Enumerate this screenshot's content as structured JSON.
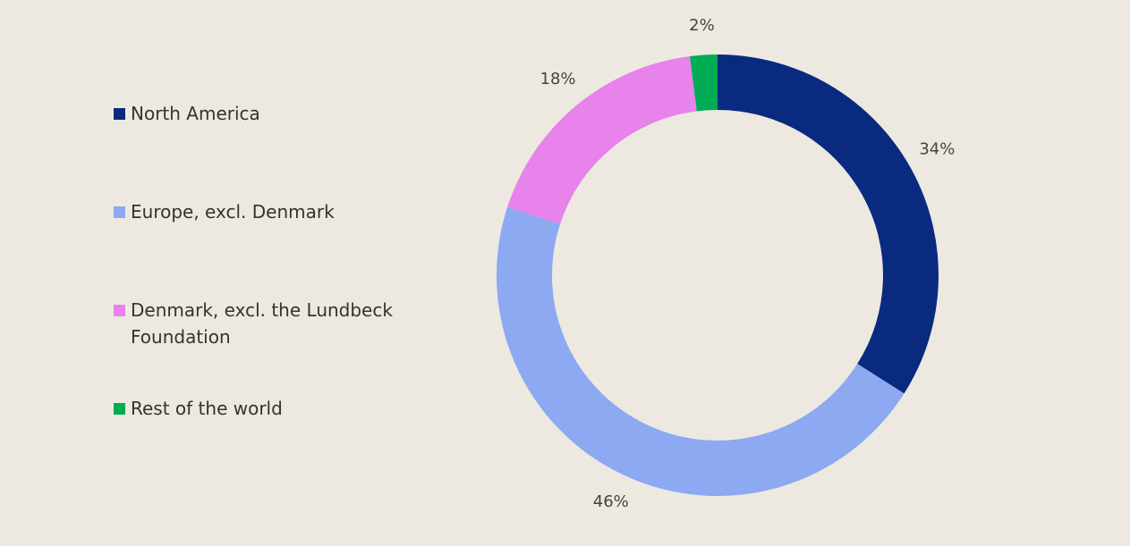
{
  "chart_data": {
    "type": "donut",
    "title": "",
    "categories": [
      "North America",
      "Europe, excl. Denmark",
      "Denmark, excl. the Lundbeck Foundation",
      "Rest of the world"
    ],
    "values": [
      34,
      46,
      18,
      2
    ],
    "value_labels": [
      "34%",
      "46%",
      "18%",
      "2%"
    ],
    "colors": [
      "#0a2a80",
      "#8ca9f2",
      "#e783ea",
      "#00ad54"
    ],
    "start": "12 o'clock",
    "direction": "clockwise",
    "legend_position": "left"
  },
  "legend": [
    {
      "label": "North America",
      "color": "#0a2a80"
    },
    {
      "label": "Europe, excl. Denmark",
      "color": "#8ca9f2"
    },
    {
      "label": "Denmark, excl. the Lundbeck Foundation",
      "color": "#e783ea"
    },
    {
      "label": "Rest of the world",
      "color": "#00ad54"
    }
  ],
  "colors": {
    "background": "#ede9e0",
    "text": "#333333"
  }
}
